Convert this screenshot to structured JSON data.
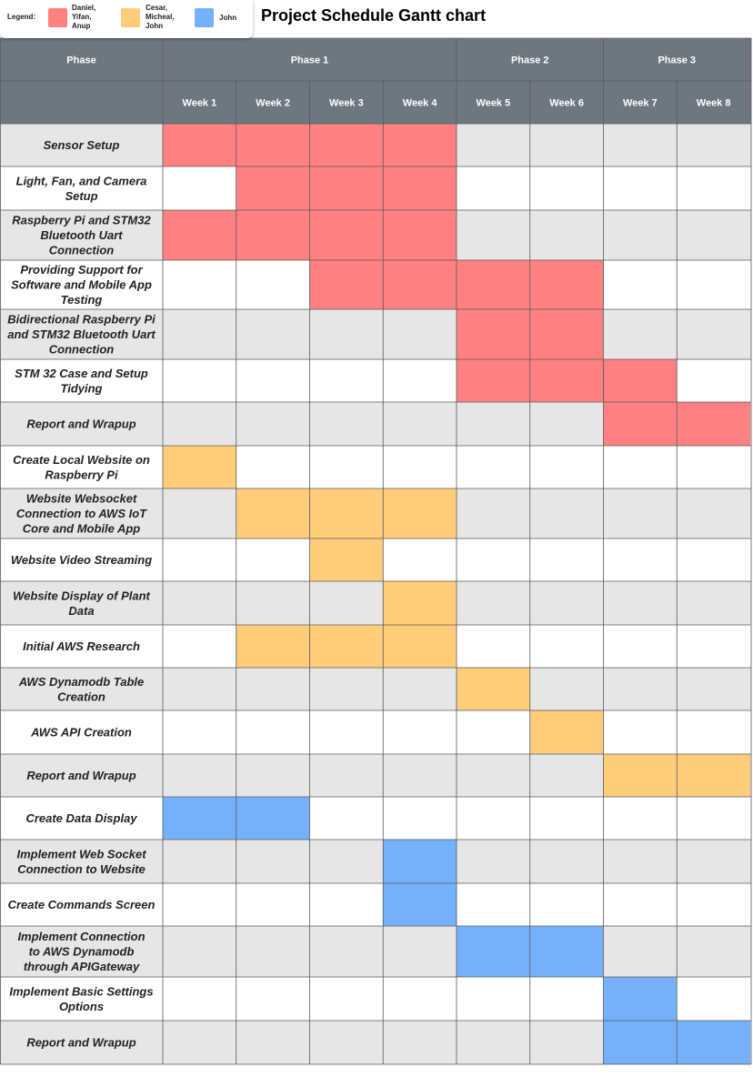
{
  "title": "Project Schedule Gantt chart",
  "legend": {
    "label": "Legend:",
    "items": [
      {
        "name": "Daniel, Yifan, Anup",
        "lines": [
          "Daniel,",
          "Yifan,",
          "Anup"
        ],
        "color": "#ff8080"
      },
      {
        "name": "Cesar, Micheal, John",
        "lines": [
          "Cesar,",
          "Micheal,",
          "John"
        ],
        "color": "#ffcc7a"
      },
      {
        "name": "John",
        "lines": [
          "John"
        ],
        "color": "#75b1fb"
      }
    ]
  },
  "chart_data": {
    "type": "gantt",
    "phase_header": "Phase",
    "phases": [
      {
        "name": "Phase 1",
        "weeks": [
          1,
          4
        ]
      },
      {
        "name": "Phase 2",
        "weeks": [
          5,
          6
        ]
      },
      {
        "name": "Phase 3",
        "weeks": [
          7,
          8
        ]
      }
    ],
    "weeks": [
      "Week 1",
      "Week 2",
      "Week 3",
      "Week 4",
      "Week 5",
      "Week 6",
      "Week 7",
      "Week 8"
    ],
    "tasks": [
      {
        "name": "Sensor Setup",
        "lines": [
          "Sensor Setup"
        ],
        "group": 0,
        "start": 1,
        "end": 4
      },
      {
        "name": "Light, Fan, and Camera Setup",
        "lines": [
          "Light, Fan, and Camera",
          "Setup"
        ],
        "group": 0,
        "start": 2,
        "end": 4
      },
      {
        "name": "Raspberry Pi and STM32 Bluetooth Uart Connection",
        "lines": [
          "Raspberry Pi and STM32",
          "Bluetooth Uart",
          "Connection"
        ],
        "group": 0,
        "start": 1,
        "end": 4
      },
      {
        "name": "Providing Support for Software and Mobile App Testing",
        "lines": [
          "Providing Support for",
          "Software and Mobile App",
          "Testing"
        ],
        "group": 0,
        "start": 3,
        "end": 6
      },
      {
        "name": "Bidirectional Raspberry Pi and STM32 Bluetooth Uart Connection",
        "lines": [
          "Bidirectional Raspberry Pi",
          "and STM32 Bluetooth Uart",
          "Connection"
        ],
        "group": 0,
        "start": 5,
        "end": 6
      },
      {
        "name": "STM 32 Case and Setup Tidying",
        "lines": [
          "STM 32 Case and Setup",
          "Tidying"
        ],
        "group": 0,
        "start": 5,
        "end": 7
      },
      {
        "name": "Report and Wrapup",
        "lines": [
          "Report and Wrapup"
        ],
        "group": 0,
        "start": 7,
        "end": 8
      },
      {
        "name": "Create Local Website on Raspberry Pi",
        "lines": [
          "Create Local Website on",
          "Raspberry Pi"
        ],
        "group": 1,
        "start": 1,
        "end": 1
      },
      {
        "name": "Website Websocket Connection to AWS IoT Core and Mobile App",
        "lines": [
          "Website Websocket",
          "Connection to AWS IoT",
          "Core and Mobile App"
        ],
        "group": 1,
        "start": 2,
        "end": 4
      },
      {
        "name": "Website Video Streaming",
        "lines": [
          "Website Video Streaming"
        ],
        "group": 1,
        "start": 3,
        "end": 3
      },
      {
        "name": "Website Display of Plant Data",
        "lines": [
          "Website Display of Plant",
          "Data"
        ],
        "group": 1,
        "start": 4,
        "end": 4
      },
      {
        "name": "Initial AWS Research",
        "lines": [
          "Initial AWS Research"
        ],
        "group": 1,
        "start": 2,
        "end": 4
      },
      {
        "name": "AWS Dynamodb Table Creation",
        "lines": [
          "AWS Dynamodb Table",
          "Creation"
        ],
        "group": 1,
        "start": 5,
        "end": 5
      },
      {
        "name": "AWS API Creation",
        "lines": [
          "AWS API Creation"
        ],
        "group": 1,
        "start": 6,
        "end": 6
      },
      {
        "name": "Report and Wrapup",
        "lines": [
          "Report and Wrapup"
        ],
        "group": 1,
        "start": 7,
        "end": 8
      },
      {
        "name": "Create Data Display",
        "lines": [
          "Create Data Display"
        ],
        "group": 2,
        "start": 1,
        "end": 2
      },
      {
        "name": "Implement Web Socket Connection to Website",
        "lines": [
          "Implement Web Socket",
          "Connection to Website"
        ],
        "group": 2,
        "start": 4,
        "end": 4
      },
      {
        "name": "Create Commands Screen",
        "lines": [
          "Create Commands Screen"
        ],
        "group": 2,
        "start": 4,
        "end": 4
      },
      {
        "name": "Implement Connection to AWS Dynamodb through APIGateway",
        "lines": [
          "Implement Connection",
          "to AWS Dynamodb",
          "through APIGateway"
        ],
        "group": 2,
        "start": 5,
        "end": 6
      },
      {
        "name": "Implement Basic Settings Options",
        "lines": [
          "Implement Basic Settings",
          "Options"
        ],
        "group": 2,
        "start": 7,
        "end": 7
      },
      {
        "name": "Report and Wrapup",
        "lines": [
          "Report and Wrapup"
        ],
        "group": 2,
        "start": 7,
        "end": 8
      }
    ],
    "colors": {
      "header": "#6d7782",
      "header_text": "#ffffff",
      "row_alt": "#e6e6e6",
      "row": "#ffffff",
      "grid": "#5a5a5a"
    }
  }
}
